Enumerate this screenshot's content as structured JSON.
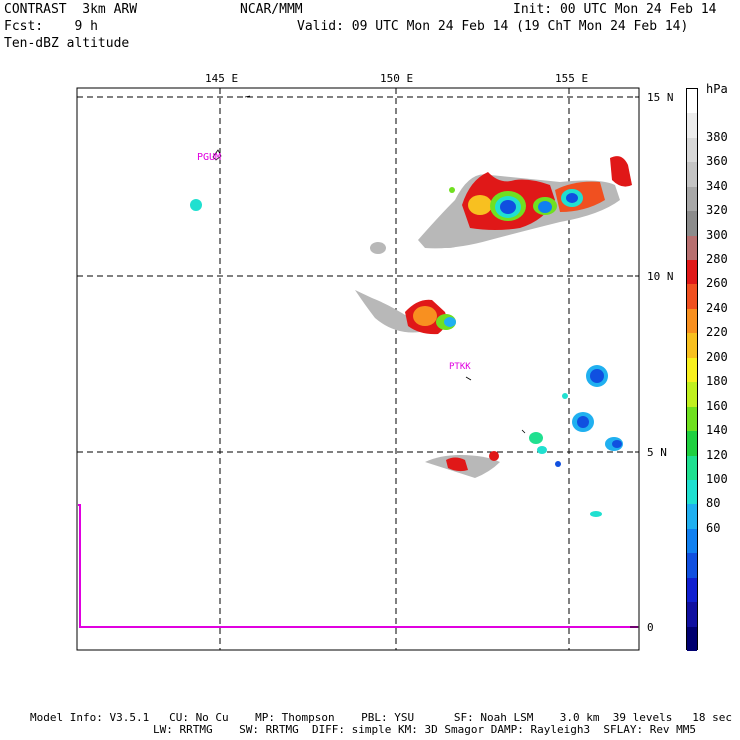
{
  "header": {
    "model": "CONTRAST  3km ARW",
    "forecast": "Fcst:    9 h",
    "field": "Ten-dBZ altitude",
    "center": "NCAR/MMM",
    "init": "Init: 00 UTC Mon 24 Feb 14",
    "valid": "Valid: 09 UTC Mon 24 Feb 14 (19 ChT Mon 24 Feb 14)"
  },
  "map": {
    "lon_labels": [
      "145 E",
      "150 E",
      "155 E"
    ],
    "lat_labels": [
      "15 N",
      "10 N",
      "5 N"
    ],
    "stations": [
      {
        "id": "PGUM"
      },
      {
        "id": "PTKK"
      }
    ],
    "timeseries_axis_label": "0",
    "timeseries_color": "#e000e0",
    "grid": true
  },
  "colorbar": {
    "unit": "hPa",
    "labels": [
      "380",
      "360",
      "340",
      "320",
      "300",
      "280",
      "260",
      "240",
      "220",
      "200",
      "180",
      "160",
      "140",
      "120",
      "100",
      "80",
      "60"
    ],
    "colors": [
      "#ffffff",
      "#ececec",
      "#d8d8d8",
      "#c4c4c4",
      "#a8a8a8",
      "#8c8c8c",
      "#b87070",
      "#e01818",
      "#f05020",
      "#f89020",
      "#f8c020",
      "#f8f020",
      "#c0f020",
      "#70e020",
      "#20d040",
      "#20e090",
      "#20e0d0",
      "#20b0f0",
      "#1080f0",
      "#1050e0",
      "#1020d0",
      "#1010a0",
      "#000070"
    ]
  },
  "footer": {
    "line1": "Model Info: V3.5.1   CU: No Cu    MP: Thompson    PBL: YSU      SF: Noah LSM    3.0 km  39 levels   18 sec",
    "line2": "LW: RRTMG    SW: RRTMG  DIFF: simple KM: 3D Smagor DAMP: Rayleigh3  SFLAY: Rev MM5"
  }
}
